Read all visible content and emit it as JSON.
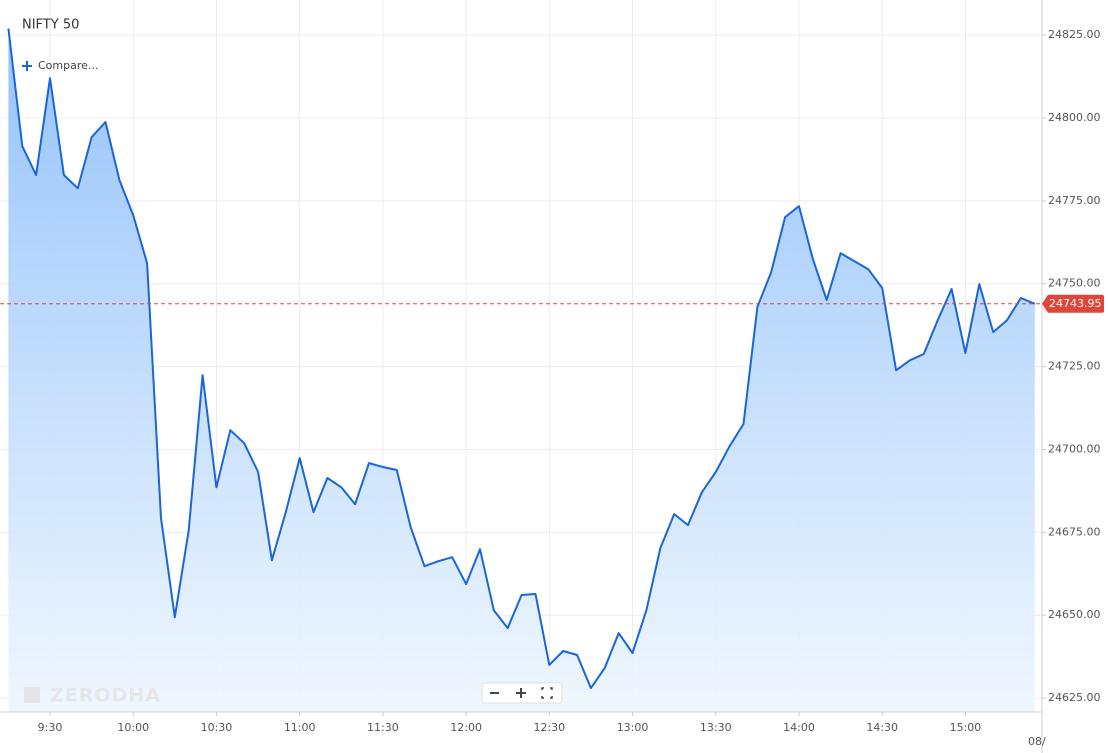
{
  "chart_data": {
    "type": "area",
    "title": "NIFTY 50",
    "compare_label": "Compare...",
    "watermark": "ZERODHA",
    "categories": [
      null,
      null,
      null,
      "9:30",
      null,
      null,
      null,
      null,
      null,
      "10:00",
      null,
      null,
      null,
      null,
      null,
      "10:30",
      null,
      null,
      null,
      null,
      null,
      "11:00",
      null,
      null,
      null,
      null,
      null,
      "11:30",
      null,
      null,
      null,
      null,
      null,
      "12:00",
      null,
      null,
      null,
      null,
      null,
      "12:30",
      null,
      null,
      null,
      null,
      null,
      "13:00",
      null,
      null,
      null,
      null,
      null,
      "13:30",
      null,
      null,
      null,
      null,
      null,
      "14:00",
      null,
      null,
      null,
      null,
      null,
      "14:30",
      null,
      null,
      null,
      null,
      null,
      "15:00",
      null,
      null,
      null,
      null,
      null
    ],
    "next_day_label": "08/",
    "series": [
      {
        "name": "NIFTY 50",
        "color": "#1a66d9",
        "values": [
          24827,
          24791.5,
          24782.8,
          24812,
          24782.8,
          24778.8,
          24794.2,
          24798.8,
          24781.3,
          24770.7,
          24756.2,
          24679.3,
          24649.4,
          24675.6,
          24722.4,
          24688.6,
          24705.8,
          24701.9,
          24693.2,
          24666.6,
          24681.1,
          24697.4,
          24681.1,
          24691.4,
          24688.6,
          24683.5,
          24695.9,
          24694.7,
          24693.8,
          24676.6,
          24664.8,
          24666.3,
          24667.5,
          24659.4,
          24669.9,
          24651.5,
          24646.1,
          24656.1,
          24656.4,
          24635.0,
          24639.2,
          24638.0,
          24628.0,
          24634.1,
          24644.6,
          24638.6,
          24651.5,
          24670.2,
          24680.5,
          24677.2,
          24687.1,
          24693.2,
          24701.0,
          24707.7,
          24743.0,
          24753.5,
          24770.1,
          24773.4,
          24757.4,
          24745.1,
          24759.2,
          24756.8,
          24754.4,
          24748.7,
          24723.9,
          24726.9,
          24728.8,
          24739.0,
          24748.4,
          24729.1,
          24749.9,
          24735.4,
          24739.0,
          24745.7,
          24743.95
        ]
      }
    ],
    "last_price": 24743.95,
    "last_price_color": "#e0453a",
    "ylim": [
      24620.8,
      24835.6
    ],
    "yticks": [
      {
        "value": 24625,
        "label": "24625.00"
      },
      {
        "value": 24650,
        "label": "24650.00"
      },
      {
        "value": 24675,
        "label": "24675.00"
      },
      {
        "value": 24700,
        "label": "24700.00"
      },
      {
        "value": 24725,
        "label": "24725.00"
      },
      {
        "value": 24750,
        "label": "24750.00"
      },
      {
        "value": 24775,
        "label": "24775.00"
      },
      {
        "value": 24800,
        "label": "24800.00"
      },
      {
        "value": 24825,
        "label": "24825.00"
      }
    ],
    "grid": true
  }
}
